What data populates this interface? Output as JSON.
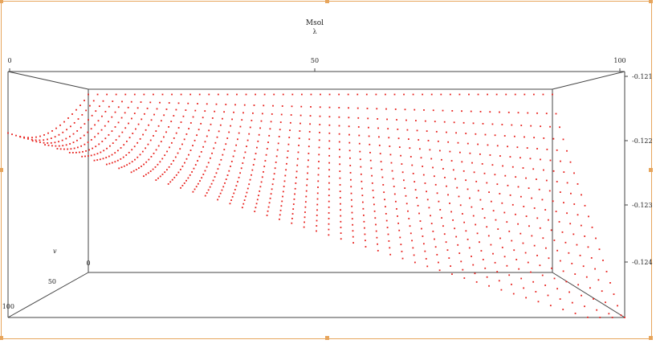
{
  "chart_data": {
    "type": "scatter",
    "title": "Msol",
    "subtitle": "λ",
    "xlabel": "λ",
    "ylabel": "v",
    "zlabel": "",
    "x_ticks": [
      "0",
      "50",
      "100"
    ],
    "y_ticks": [
      "0",
      "50",
      "100"
    ],
    "z_ticks": [
      "-0.121",
      "-0.122",
      "-0.123",
      "-0.124"
    ],
    "xlim": [
      0,
      100
    ],
    "ylim": [
      0,
      100
    ],
    "zlim": [
      -0.1245,
      -0.121
    ],
    "grid": false,
    "legend": "none",
    "colors": {
      "points": "#e8201c",
      "axes": "#444444",
      "frame": "#e7a55c"
    },
    "series": [
      {
        "description_values": "surface of points over lambda 0..100 and v 0..100; each red dotted column curve descends from about -0.121 toward about -0.1245 as v increases",
        "lambda_values": [
          0,
          2,
          4,
          6,
          8,
          10,
          12,
          14,
          16,
          18,
          20,
          22,
          24,
          26,
          28,
          30,
          32,
          34,
          36,
          38,
          40,
          42,
          44,
          46,
          48,
          50,
          52,
          54,
          56,
          58,
          60,
          62,
          64,
          66,
          68,
          70,
          72,
          74,
          76,
          78,
          80,
          82,
          84,
          86,
          88,
          90,
          92,
          94,
          96,
          98,
          100
        ],
        "v_values": [
          0,
          5,
          10,
          15,
          20,
          25,
          30,
          35,
          40,
          45,
          50,
          55,
          60,
          65,
          70,
          75,
          80,
          85,
          90,
          95,
          100
        ],
        "z_range": [
          -0.1245,
          -0.121
        ]
      }
    ]
  }
}
